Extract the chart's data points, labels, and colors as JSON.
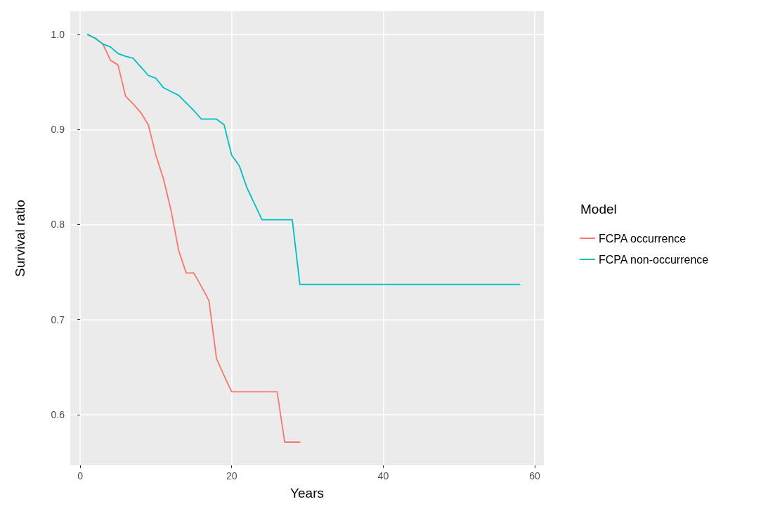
{
  "chart_data": {
    "type": "line",
    "xlabel": "Years",
    "ylabel": "Survival ratio",
    "legend_title": "Model",
    "legend": "right",
    "grid": true,
    "marker": "none",
    "line_style": "solid",
    "xlim": [
      -1.3,
      61.2
    ],
    "ylim": [
      0.5466,
      1.0245
    ],
    "xticks": [
      0,
      20,
      40,
      60
    ],
    "yticks": [
      0.6,
      0.7,
      0.8,
      0.9,
      {
        "value": 1,
        "label": "1.0"
      }
    ],
    "series": [
      {
        "name": "FCPA occurrence",
        "color": "#f8766d",
        "x": [
          1,
          2,
          3,
          4,
          5,
          6,
          7,
          8,
          9,
          10,
          11,
          12,
          13,
          14,
          15,
          16,
          17,
          18,
          19,
          20,
          26,
          27,
          29
        ],
        "values": [
          1.0,
          0.996,
          0.99,
          0.973,
          0.968,
          0.935,
          0.927,
          0.918,
          0.905,
          0.873,
          0.848,
          0.815,
          0.773,
          0.749,
          0.749,
          0.735,
          0.72,
          0.659,
          0.641,
          0.624,
          0.624,
          0.571,
          0.571
        ]
      },
      {
        "name": "FCPA non-occurrence",
        "color": "#00bfc4",
        "x": [
          1,
          2,
          3,
          4,
          5,
          6,
          7,
          8,
          9,
          10,
          11,
          12,
          13,
          14,
          15,
          16,
          18,
          19,
          20,
          21,
          22,
          23,
          24,
          28,
          29,
          58
        ],
        "values": [
          1.0,
          0.996,
          0.99,
          0.987,
          0.98,
          0.977,
          0.975,
          0.966,
          0.957,
          0.954,
          0.944,
          0.94,
          0.936,
          0.928,
          0.92,
          0.911,
          0.911,
          0.905,
          0.873,
          0.862,
          0.839,
          0.822,
          0.805,
          0.805,
          0.737,
          0.737
        ]
      }
    ]
  }
}
